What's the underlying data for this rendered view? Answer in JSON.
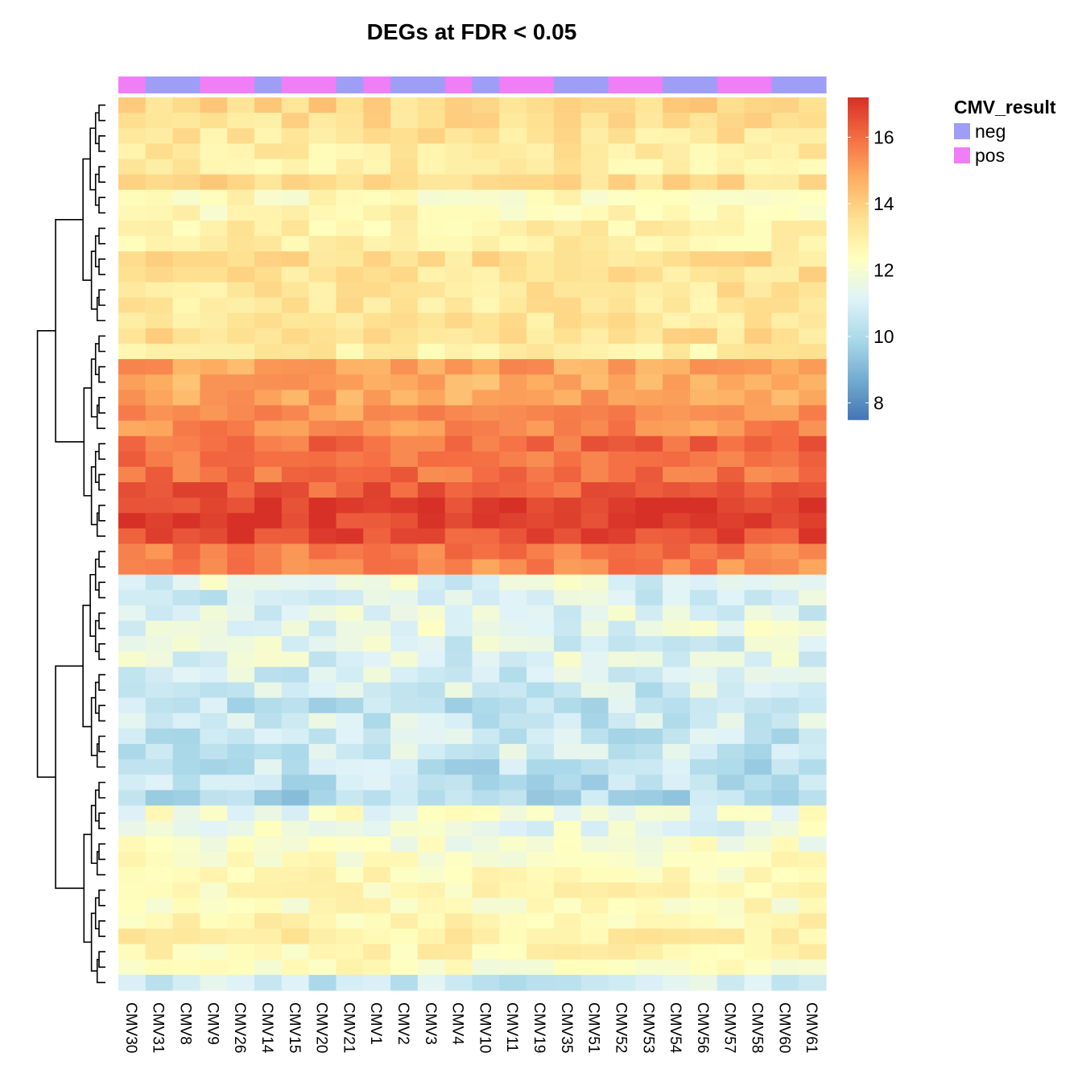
{
  "chart_data": {
    "type": "heatmap",
    "title": "DEGs at FDR < 0.05",
    "columns": [
      "CMV30",
      "CMV31",
      "CMV8",
      "CMV9",
      "CMV26",
      "CMV14",
      "CMV15",
      "CMV20",
      "CMV21",
      "CMV1",
      "CMV2",
      "CMV3",
      "CMV4",
      "CMV10",
      "CMV11",
      "CMV19",
      "CMV35",
      "CMV51",
      "CMV52",
      "CMV53",
      "CMV54",
      "CMV56",
      "CMV57",
      "CMV58",
      "CMV60",
      "CMV61"
    ],
    "annotation": {
      "name": "CMV_result",
      "values": [
        "pos",
        "neg",
        "neg",
        "pos",
        "pos",
        "neg",
        "pos",
        "pos",
        "neg",
        "pos",
        "neg",
        "neg",
        "pos",
        "neg",
        "pos",
        "pos",
        "neg",
        "neg",
        "pos",
        "pos",
        "neg",
        "neg",
        "pos",
        "pos",
        "neg",
        "neg"
      ],
      "levels": [
        {
          "label": "neg",
          "color": "#9e9ef7"
        },
        {
          "label": "pos",
          "color": "#f07ef7"
        }
      ]
    },
    "color_scale": {
      "min": 7.5,
      "max": 17.2,
      "ticks": [
        8,
        10,
        12,
        14,
        16
      ],
      "colors": [
        "#4575b4",
        "#74add1",
        "#abd9e9",
        "#e0f3f8",
        "#ffffbf",
        "#fee090",
        "#fdae61",
        "#f46d43",
        "#d73027"
      ]
    },
    "row_profiles": [
      13.8,
      13.5,
      13.3,
      13.1,
      13.0,
      13.6,
      12.5,
      12.6,
      12.9,
      13.0,
      13.5,
      13.4,
      13.3,
      13.2,
      13.2,
      13.5,
      13.0,
      15.0,
      14.8,
      14.9,
      15.3,
      15.4,
      16.0,
      15.8,
      15.9,
      16.3,
      16.9,
      16.8,
      16.6,
      15.8,
      15.5,
      11.3,
      11.0,
      11.2,
      11.4,
      11.2,
      11.2,
      10.9,
      10.8,
      10.5,
      10.7,
      10.6,
      10.7,
      10.4,
      10.3,
      10.0,
      11.8,
      11.6,
      12.0,
      12.3,
      12.5,
      12.6,
      12.4,
      12.7,
      13.0,
      12.7,
      12.3,
      10.8
    ],
    "grid": false,
    "legend": "right"
  }
}
